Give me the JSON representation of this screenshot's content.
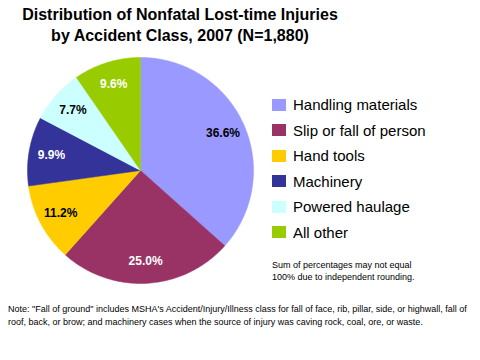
{
  "chart_data": {
    "type": "pie",
    "title": "Distribution of Nonfatal Lost-time Injuries\nby Accident Class, 2007 (N=1,880)",
    "categories": [
      "Handling materials",
      "Slip or fall of person",
      "Hand tools",
      "Machinery",
      "Powered haulage",
      "All other"
    ],
    "values": [
      36.6,
      25.0,
      11.2,
      9.9,
      7.7,
      9.6
    ],
    "value_labels": [
      "36.6%",
      "25.0%",
      "11.2%",
      "9.9%",
      "7.7%",
      "9.6%"
    ],
    "colors": [
      "#9999ff",
      "#993366",
      "#ffcc00",
      "#333399",
      "#ccffff",
      "#99cc00"
    ],
    "data_labels": true,
    "legend": "right",
    "annotations": [
      "Sum of percentages may not equal\n100% due to independent rounding.",
      "Note: \"Fall of ground\" includes MSHA's Accident/Injury/Illness class for fall of face, rib, pillar, side, or highwall, fall of roof, back, or brow; and machinery cases when the source of injury was caving rock, coal, ore, or waste."
    ]
  }
}
